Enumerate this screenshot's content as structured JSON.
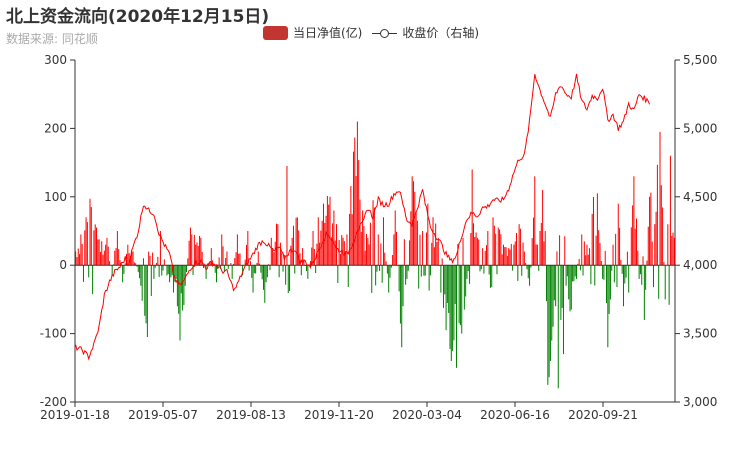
{
  "header": {
    "title": "北上资金流向(2020年12月15日)",
    "subtitle": "数据来源: 同花顺"
  },
  "legend": {
    "bar_label": "当日净值(亿)",
    "line_label": "收盘价（右轴)"
  },
  "colors": {
    "positive": "#ff0000",
    "negative": "#008000",
    "line": "#ff0000",
    "axis": "#333333",
    "legend_bar": "#c23531"
  },
  "chart_data": {
    "type": "bar+line",
    "x_tick_labels": [
      "2019-01-18",
      "2019-05-07",
      "2019-08-13",
      "2019-11-20",
      "2020-03-04",
      "2020-06-16",
      "2020-09-21"
    ],
    "y_left": {
      "min": -200,
      "max": 300,
      "ticks": [
        -200,
        -100,
        0,
        100,
        200,
        300
      ]
    },
    "y_right": {
      "min": 3000,
      "max": 5500,
      "ticks": [
        "3,000",
        "3,500",
        "4,000",
        "4,500",
        "5,000",
        "5,500"
      ]
    },
    "n_days": 460,
    "net_inflow_approx": [
      [
        0,
        20
      ],
      [
        4,
        45
      ],
      [
        8,
        70
      ],
      [
        12,
        85
      ],
      [
        16,
        55
      ],
      [
        20,
        35
      ],
      [
        24,
        40
      ],
      [
        28,
        -15
      ],
      [
        32,
        50
      ],
      [
        36,
        -25
      ],
      [
        40,
        30
      ],
      [
        44,
        20
      ],
      [
        50,
        -30
      ],
      [
        55,
        -105
      ],
      [
        60,
        -20
      ],
      [
        65,
        50
      ],
      [
        70,
        -15
      ],
      [
        75,
        -40
      ],
      [
        78,
        -60
      ],
      [
        80,
        -110
      ],
      [
        84,
        -30
      ],
      [
        88,
        55
      ],
      [
        92,
        30
      ],
      [
        96,
        40
      ],
      [
        100,
        -20
      ],
      [
        104,
        25
      ],
      [
        108,
        -25
      ],
      [
        112,
        45
      ],
      [
        116,
        20
      ],
      [
        120,
        -20
      ],
      [
        124,
        45
      ],
      [
        128,
        -15
      ],
      [
        132,
        50
      ],
      [
        136,
        -40
      ],
      [
        140,
        20
      ],
      [
        145,
        -55
      ],
      [
        150,
        40
      ],
      [
        155,
        60
      ],
      [
        160,
        15
      ],
      [
        162,
        145
      ],
      [
        166,
        40
      ],
      [
        170,
        70
      ],
      [
        174,
        25
      ],
      [
        178,
        -20
      ],
      [
        182,
        50
      ],
      [
        186,
        70
      ],
      [
        190,
        90
      ],
      [
        195,
        100
      ],
      [
        200,
        60
      ],
      [
        205,
        40
      ],
      [
        210,
        75
      ],
      [
        216,
        210
      ],
      [
        220,
        80
      ],
      [
        224,
        40
      ],
      [
        228,
        95
      ],
      [
        232,
        45
      ],
      [
        236,
        70
      ],
      [
        240,
        -40
      ],
      [
        245,
        80
      ],
      [
        250,
        -120
      ],
      [
        254,
        -20
      ],
      [
        258,
        130
      ],
      [
        262,
        65
      ],
      [
        266,
        50
      ],
      [
        270,
        90
      ],
      [
        274,
        70
      ],
      [
        278,
        40
      ],
      [
        280,
        -40
      ],
      [
        284,
        -95
      ],
      [
        286,
        -70
      ],
      [
        288,
        -140
      ],
      [
        290,
        -110
      ],
      [
        292,
        -150
      ],
      [
        294,
        -85
      ],
      [
        296,
        -100
      ],
      [
        298,
        -65
      ],
      [
        300,
        -20
      ],
      [
        304,
        140
      ],
      [
        308,
        40
      ],
      [
        312,
        25
      ],
      [
        316,
        50
      ],
      [
        320,
        70
      ],
      [
        324,
        55
      ],
      [
        328,
        30
      ],
      [
        332,
        25
      ],
      [
        336,
        30
      ],
      [
        340,
        60
      ],
      [
        344,
        20
      ],
      [
        348,
        -30
      ],
      [
        352,
        130
      ],
      [
        354,
        30
      ],
      [
        356,
        50
      ],
      [
        358,
        110
      ],
      [
        360,
        50
      ],
      [
        362,
        -175
      ],
      [
        364,
        -140
      ],
      [
        366,
        -90
      ],
      [
        368,
        -60
      ],
      [
        370,
        -180
      ],
      [
        372,
        -80
      ],
      [
        374,
        -130
      ],
      [
        376,
        -30
      ],
      [
        378,
        -50
      ],
      [
        380,
        -65
      ],
      [
        384,
        -20
      ],
      [
        388,
        45
      ],
      [
        392,
        30
      ],
      [
        396,
        75
      ],
      [
        400,
        105
      ],
      [
        404,
        -20
      ],
      [
        408,
        -120
      ],
      [
        412,
        30
      ],
      [
        416,
        90
      ],
      [
        420,
        -60
      ],
      [
        424,
        -40
      ],
      [
        428,
        130
      ],
      [
        432,
        -20
      ],
      [
        436,
        -80
      ],
      [
        440,
        100
      ],
      [
        444,
        60
      ],
      [
        448,
        195
      ],
      [
        452,
        -50
      ],
      [
        456,
        160
      ],
      [
        459,
        40
      ]
    ],
    "close_price_approx": [
      [
        0,
        3400
      ],
      [
        5,
        3380
      ],
      [
        10,
        3330
      ],
      [
        14,
        3420
      ],
      [
        18,
        3550
      ],
      [
        22,
        3780
      ],
      [
        26,
        3880
      ],
      [
        30,
        3950
      ],
      [
        34,
        3990
      ],
      [
        38,
        4050
      ],
      [
        40,
        4000
      ],
      [
        44,
        4130
      ],
      [
        48,
        4250
      ],
      [
        52,
        4450
      ],
      [
        56,
        4400
      ],
      [
        60,
        4380
      ],
      [
        64,
        4230
      ],
      [
        68,
        4150
      ],
      [
        72,
        4080
      ],
      [
        76,
        3900
      ],
      [
        80,
        3850
      ],
      [
        84,
        3900
      ],
      [
        88,
        3980
      ],
      [
        92,
        4020
      ],
      [
        96,
        4030
      ],
      [
        100,
        3980
      ],
      [
        104,
        4020
      ],
      [
        108,
        4000
      ],
      [
        112,
        3960
      ],
      [
        116,
        3950
      ],
      [
        118,
        3900
      ],
      [
        120,
        3850
      ],
      [
        122,
        3820
      ],
      [
        124,
        3860
      ],
      [
        128,
        3950
      ],
      [
        132,
        4020
      ],
      [
        136,
        4080
      ],
      [
        140,
        4150
      ],
      [
        144,
        4180
      ],
      [
        148,
        4140
      ],
      [
        152,
        4100
      ],
      [
        156,
        4130
      ],
      [
        160,
        4050
      ],
      [
        164,
        4100
      ],
      [
        168,
        4120
      ],
      [
        172,
        4020
      ],
      [
        176,
        4030
      ],
      [
        180,
        3990
      ],
      [
        184,
        4060
      ],
      [
        188,
        4150
      ],
      [
        192,
        4230
      ],
      [
        196,
        4200
      ],
      [
        200,
        4120
      ],
      [
        204,
        4100
      ],
      [
        208,
        4080
      ],
      [
        212,
        4150
      ],
      [
        216,
        4260
      ],
      [
        220,
        4300
      ],
      [
        224,
        4420
      ],
      [
        228,
        4350
      ],
      [
        232,
        4480
      ],
      [
        236,
        4440
      ],
      [
        240,
        4450
      ],
      [
        244,
        4520
      ],
      [
        248,
        4550
      ],
      [
        250,
        4480
      ],
      [
        254,
        4330
      ],
      [
        258,
        4300
      ],
      [
        262,
        4420
      ],
      [
        266,
        4550
      ],
      [
        268,
        4450
      ],
      [
        272,
        4280
      ],
      [
        276,
        4220
      ],
      [
        280,
        4160
      ],
      [
        284,
        4080
      ],
      [
        288,
        4030
      ],
      [
        292,
        4070
      ],
      [
        296,
        4220
      ],
      [
        300,
        4340
      ],
      [
        304,
        4380
      ],
      [
        308,
        4360
      ],
      [
        312,
        4420
      ],
      [
        316,
        4430
      ],
      [
        320,
        4480
      ],
      [
        324,
        4470
      ],
      [
        328,
        4480
      ],
      [
        332,
        4560
      ],
      [
        336,
        4680
      ],
      [
        340,
        4780
      ],
      [
        344,
        4800
      ],
      [
        348,
        5050
      ],
      [
        352,
        5400
      ],
      [
        356,
        5280
      ],
      [
        360,
        5180
      ],
      [
        364,
        5070
      ],
      [
        368,
        5250
      ],
      [
        372,
        5320
      ],
      [
        376,
        5250
      ],
      [
        380,
        5230
      ],
      [
        384,
        5380
      ],
      [
        388,
        5200
      ],
      [
        392,
        5140
      ],
      [
        396,
        5240
      ],
      [
        400,
        5220
      ],
      [
        404,
        5300
      ],
      [
        408,
        5060
      ],
      [
        412,
        5100
      ],
      [
        416,
        5000
      ],
      [
        420,
        5050
      ],
      [
        424,
        5180
      ],
      [
        428,
        5130
      ],
      [
        432,
        5250
      ],
      [
        436,
        5220
      ],
      [
        440,
        5190
      ]
    ]
  }
}
